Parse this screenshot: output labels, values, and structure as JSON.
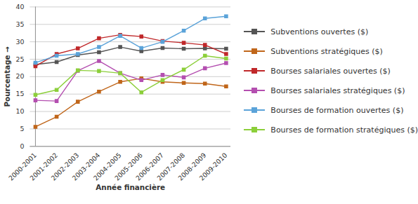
{
  "chart_data": {
    "type": "line",
    "x_label": "Année financière",
    "y_label": "Pourcentage",
    "categories": [
      "2000-2001",
      "2001-2002",
      "2002-2003",
      "2003-2004",
      "2004-2005",
      "2005-2006",
      "2006-2007",
      "2007-2008",
      "2008-2009",
      "2009-2010"
    ],
    "ylim": [
      0,
      40
    ],
    "yticks": [
      0,
      5,
      10,
      15,
      20,
      25,
      30,
      35,
      40
    ],
    "grid": true,
    "legend": "right",
    "marker": "square",
    "series": [
      {
        "name": "Subventions ouvertes ($)",
        "color": "#555555",
        "values": [
          23.5,
          24.2,
          26.2,
          27,
          28.5,
          27.3,
          28.2,
          28,
          28.1,
          28
        ]
      },
      {
        "name": "Subventions stratégiques ($)",
        "color": "#c0661a",
        "values": [
          5.6,
          8.5,
          12.8,
          15.7,
          18.5,
          19.5,
          18.5,
          18.2,
          18,
          17.2
        ]
      },
      {
        "name": "Bourses salariales ouvertes ($)",
        "color": "#c0282a",
        "values": [
          23,
          26.5,
          28.1,
          31,
          32,
          31.5,
          30.2,
          29.7,
          29.1,
          26.5
        ]
      },
      {
        "name": "Bourses salariales stratégiques ($)",
        "color": "#b44fb0",
        "values": [
          13.2,
          13,
          21.7,
          24.5,
          21,
          19,
          20.5,
          19.8,
          22.4,
          23.9
        ]
      },
      {
        "name": "Bourses de formation ouvertes ($)",
        "color": "#5ba3d9",
        "values": [
          24,
          26,
          26.5,
          28.5,
          31.7,
          28.2,
          30,
          33.2,
          36.7,
          37.3
        ]
      },
      {
        "name": "Bourses de formation stratégiques ($)",
        "color": "#8ccf3a",
        "values": [
          14.8,
          16.2,
          21.8,
          21.6,
          21,
          15.5,
          19,
          22,
          26,
          25.2
        ]
      }
    ]
  }
}
